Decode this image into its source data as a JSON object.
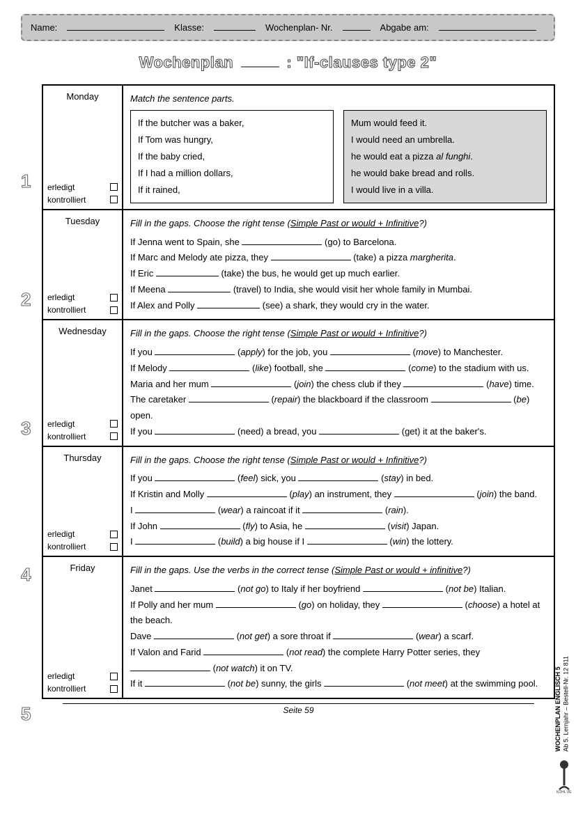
{
  "header": {
    "name": "Name:",
    "klasse": "Klasse:",
    "wochenplan_nr": "Wochenplan- Nr.",
    "abgabe": "Abgabe am:"
  },
  "title": {
    "pre": "Wochenplan",
    "post": ": \"If-clauses type 2\""
  },
  "checks": {
    "erledigt": "erledigt",
    "kontrolliert": "kontrolliert"
  },
  "days": {
    "mon": {
      "num": "1",
      "label": "Monday",
      "instr": "Match the sentence parts.",
      "left": [
        "If the butcher was a baker,",
        "If Tom was hungry,",
        "If the baby cried,",
        "If I had a million dollars,",
        "If it rained,"
      ],
      "right": [
        "Mum would feed it.",
        "I would need an umbrella.",
        "he would eat a pizza al funghi.",
        "he would bake bread and rolls.",
        "I would live in a villa."
      ]
    },
    "tue": {
      "num": "2",
      "label": "Tuesday",
      "instr_a": "Fill in the gaps. Choose the right tense (",
      "instr_b": "Simple Past or would + Infinitive",
      "instr_c": "?)",
      "s1a": "If Jenna went to Spain, she ",
      "s1b": " (go) to Barcelona.",
      "s2a": "If Marc and Melody ate pizza, they ",
      "s2b": " (take) a pizza ",
      "s2c": "margherita",
      "s2d": ".",
      "s3a": "If Eric ",
      "s3b": " (take) the bus, he would get up much earlier.",
      "s4a": "If Meena ",
      "s4b": " (travel) to India, she would visit her whole family in Mumbai.",
      "s5a": "If Alex and Polly ",
      "s5b": " (see) a shark, they would cry in the water."
    },
    "wed": {
      "num": "3",
      "label": "Wednesday",
      "instr_a": "Fill in the gaps. Choose the right tense (",
      "instr_b": "Simple Past or would + Infinitive",
      "instr_c": "?)",
      "s1a": "If you ",
      "s1b": " (",
      "s1c": "apply",
      "s1d": ") for the job, you ",
      "s1e": " (",
      "s1f": "move",
      "s1g": ") to Manchester.",
      "s2a": "If Melody ",
      "s2b": " (",
      "s2c": "like",
      "s2d": ") football, she ",
      "s2e": " (",
      "s2f": "come",
      "s2g": ") to the stadium with us.",
      "s3a": "Maria and her mum ",
      "s3b": " (",
      "s3c": "join",
      "s3d": ") the chess club if they ",
      "s3e": " (",
      "s3f": "have",
      "s3g": ") time.",
      "s4a": "The caretaker ",
      "s4b": " (",
      "s4c": "repair",
      "s4d": ") the blackboard if the classroom ",
      "s4e": " (",
      "s4f": "be",
      "s4g": ") open.",
      "s5a": "If you ",
      "s5b": " (need) a bread, you ",
      "s5c": " (get) it at the baker's."
    },
    "thu": {
      "num": "4",
      "label": "Thursday",
      "instr_a": "Fill in the gaps. Choose the right tense (",
      "instr_b": "Simple Past or would + Infinitive",
      "instr_c": "?)",
      "s1a": "If you ",
      "s1b": " (",
      "s1c": "feel",
      "s1d": ") sick, you ",
      "s1e": " (",
      "s1f": "stay",
      "s1g": ") in bed.",
      "s2a": "If Kristin and Molly ",
      "s2b": " (",
      "s2c": "play",
      "s2d": ") an instrument, they ",
      "s2e": " (",
      "s2f": "join",
      "s2g": ") the band.",
      "s3a": "I ",
      "s3b": " (",
      "s3c": "wear",
      "s3d": ") a raincoat if it ",
      "s3e": " (",
      "s3f": "rain",
      "s3g": ").",
      "s4a": "If John ",
      "s4b": " (",
      "s4c": "fly",
      "s4d": ") to Asia, he ",
      "s4e": " (",
      "s4f": "visit",
      "s4g": ") Japan.",
      "s5a": "I ",
      "s5b": " (",
      "s5c": "build",
      "s5d": ") a big house if I ",
      "s5e": " (",
      "s5f": "win",
      "s5g": ") the lottery."
    },
    "fri": {
      "num": "5",
      "label": "Friday",
      "instr_a": "Fill in the gaps. Use the verbs in the correct tense (",
      "instr_b": "Simple Past or would + infinitive",
      "instr_c": "?)",
      "s1a": "Janet ",
      "s1b": " (",
      "s1c": "not go",
      "s1d": ") to Italy if her boyfriend ",
      "s1e": " (",
      "s1f": "not be",
      "s1g": ") Italian.",
      "s2a": "If Polly and her mum ",
      "s2b": " (",
      "s2c": "go",
      "s2d": ") on holiday, they ",
      "s2e": " (",
      "s2f": "choose",
      "s2g": ") a hotel at the beach.",
      "s3a": "Dave ",
      "s3b": " (",
      "s3c": "not get",
      "s3d": ") a sore throat if ",
      "s3e": " (",
      "s3f": "wear",
      "s3g": ") a scarf.",
      "s4a": "If Valon and Farid ",
      "s4b": " (",
      "s4c": "not read",
      "s4d": ") the complete Harry Potter series, they ",
      "s4e": " (",
      "s4f": "not watch",
      "s4g": ") it on TV.",
      "s5a": "If it ",
      "s5b": " (",
      "s5c": "not be",
      "s5d": ") sunny, the girls ",
      "s5e": " (",
      "s5f": "not meet",
      "s5g": ") at the swimming pool."
    }
  },
  "footer": "Seite 59",
  "side": {
    "l1": "WOCHENPLAN ENGLISCH  5",
    "l2": "Ab 5. Lernjahr   –   Bestell-Nr. 12 811"
  }
}
